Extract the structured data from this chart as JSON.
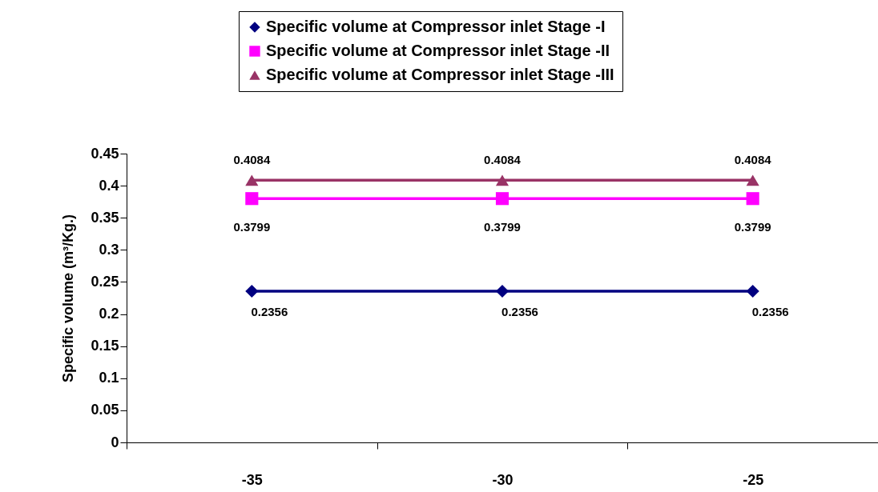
{
  "chart_data": {
    "type": "line",
    "ylabel": "Specific volume (m³/Kg.)",
    "categories": [
      "-35",
      "-30",
      "-25"
    ],
    "ylim": [
      0,
      0.45
    ],
    "yticks": [
      0,
      0.05,
      0.1,
      0.15,
      0.2,
      0.25,
      0.3,
      0.35,
      0.4,
      0.45
    ],
    "grid": false,
    "legend": "top",
    "data_labels": true,
    "series": [
      {
        "name": "Specific volume at Compressor inlet Stage -I",
        "color": "#000080",
        "marker": "diamond",
        "values": [
          0.2356,
          0.2356,
          0.2356
        ]
      },
      {
        "name": "Specific volume at Compressor inlet Stage -II",
        "color": "#ff00ff",
        "marker": "square",
        "values": [
          0.3799,
          0.3799,
          0.3799
        ]
      },
      {
        "name": "Specific volume at Compressor inlet Stage -III",
        "color": "#993366",
        "marker": "triangle",
        "values": [
          0.4084,
          0.4084,
          0.4084
        ]
      }
    ]
  }
}
